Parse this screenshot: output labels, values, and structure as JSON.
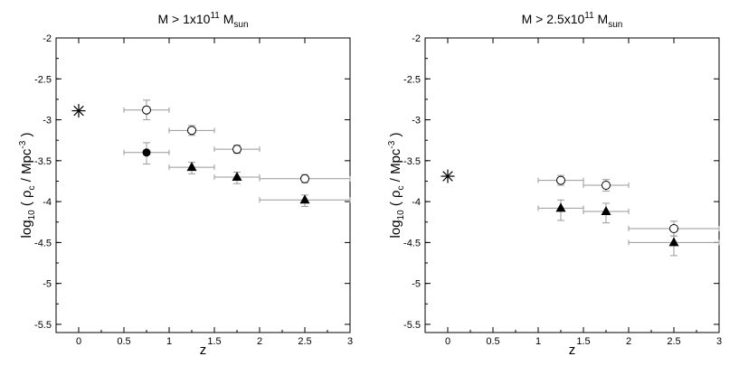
{
  "chart_data": [
    {
      "type": "scatter",
      "title": "M > 1x10",
      "title_sup": "11",
      "title_end": " M",
      "title_sub": "sun",
      "xlabel": "z",
      "ylabel_prefix": "log",
      "ylabel_prefix_sub": "10",
      "ylabel_main": "( ρ",
      "ylabel_main_sub": "c",
      "ylabel_unit": " /  Mpc",
      "ylabel_unit_sup": "-3",
      "ylabel_close": ")",
      "xlim": [
        -0.25,
        3
      ],
      "ylim": [
        -5.6,
        -2
      ],
      "x_ticks": [
        0,
        0.5,
        1,
        1.5,
        2,
        2.5,
        3
      ],
      "x_tick_labels": [
        "0",
        "0.5",
        "1",
        "1.5",
        "2",
        "2.5",
        "3"
      ],
      "y_ticks": [
        -5.5,
        -5,
        -4.5,
        -4,
        -3.5,
        -3,
        -2.5,
        -2
      ],
      "y_tick_labels": [
        "-5.5",
        "-5",
        "-4.5",
        "-4",
        "-3.5",
        "-3",
        "-2.5",
        "-2"
      ],
      "grid": false,
      "series": [
        {
          "marker": "open-circle",
          "points": [
            {
              "x": 0.75,
              "y": -2.88,
              "xlo": 0.5,
              "xhi": 1.0,
              "ylo": -3.0,
              "yhi": -2.76
            },
            {
              "x": 1.25,
              "y": -3.13,
              "xlo": 1.0,
              "xhi": 1.5,
              "ylo": -3.19,
              "yhi": -3.07
            },
            {
              "x": 1.75,
              "y": -3.36,
              "xlo": 1.5,
              "xhi": 2.0,
              "ylo": -3.41,
              "yhi": -3.31
            },
            {
              "x": 2.5,
              "y": -3.72,
              "xlo": 2.0,
              "xhi": 3.0,
              "ylo": -3.77,
              "yhi": -3.67
            }
          ]
        },
        {
          "marker": "filled-circle",
          "points": [
            {
              "x": 0.75,
              "y": -3.4,
              "xlo": 0.5,
              "xhi": 1.0,
              "ylo": -3.54,
              "yhi": -3.28
            }
          ]
        },
        {
          "marker": "filled-triangle",
          "points": [
            {
              "x": 1.25,
              "y": -3.58,
              "xlo": 1.0,
              "xhi": 1.5,
              "ylo": -3.66,
              "yhi": -3.52
            },
            {
              "x": 1.75,
              "y": -3.7,
              "xlo": 1.5,
              "xhi": 2.0,
              "ylo": -3.78,
              "yhi": -3.64
            },
            {
              "x": 2.5,
              "y": -3.98,
              "xlo": 2.0,
              "xhi": 3.0,
              "ylo": -4.06,
              "yhi": -3.92
            }
          ]
        },
        {
          "marker": "asterisk",
          "points": [
            {
              "x": 0,
              "y": -2.89
            }
          ]
        }
      ]
    },
    {
      "type": "scatter",
      "title": "M > 2.5x10",
      "title_sup": "11",
      "title_end": " M",
      "title_sub": "sun",
      "xlabel": "z",
      "ylabel_prefix": "log",
      "ylabel_prefix_sub": "10",
      "ylabel_main": "( ρ",
      "ylabel_main_sub": "c",
      "ylabel_unit": " /  Mpc",
      "ylabel_unit_sup": "-3",
      "ylabel_close": ")",
      "xlim": [
        -0.25,
        3
      ],
      "ylim": [
        -5.6,
        -2
      ],
      "x_ticks": [
        0,
        0.5,
        1,
        1.5,
        2,
        2.5,
        3
      ],
      "x_tick_labels": [
        "0",
        "0.5",
        "1",
        "1.5",
        "2",
        "2.5",
        "3"
      ],
      "y_ticks": [
        -5.5,
        -5,
        -4.5,
        -4,
        -3.5,
        -3,
        -2.5,
        -2
      ],
      "y_tick_labels": [
        "-5.5",
        "-5",
        "-4.5",
        "-4",
        "-3.5",
        "-3",
        "-2.5",
        "-2"
      ],
      "grid": false,
      "series": [
        {
          "marker": "open-circle",
          "points": [
            {
              "x": 1.25,
              "y": -3.74,
              "xlo": 1.0,
              "xhi": 1.5,
              "ylo": -3.8,
              "yhi": -3.68
            },
            {
              "x": 1.75,
              "y": -3.8,
              "xlo": 1.5,
              "xhi": 2.0,
              "ylo": -3.87,
              "yhi": -3.73
            },
            {
              "x": 2.5,
              "y": -4.33,
              "xlo": 2.0,
              "xhi": 3.0,
              "ylo": -4.42,
              "yhi": -4.24
            }
          ]
        },
        {
          "marker": "filled-triangle",
          "points": [
            {
              "x": 1.25,
              "y": -4.08,
              "xlo": 1.0,
              "xhi": 1.5,
              "ylo": -4.23,
              "yhi": -3.98
            },
            {
              "x": 1.75,
              "y": -4.12,
              "xlo": 1.5,
              "xhi": 2.0,
              "ylo": -4.26,
              "yhi": -4.02
            },
            {
              "x": 2.5,
              "y": -4.5,
              "xlo": 2.0,
              "xhi": 3.0,
              "ylo": -4.66,
              "yhi": -4.42
            }
          ]
        },
        {
          "marker": "asterisk",
          "points": [
            {
              "x": 0,
              "y": -3.69
            }
          ]
        }
      ]
    }
  ]
}
